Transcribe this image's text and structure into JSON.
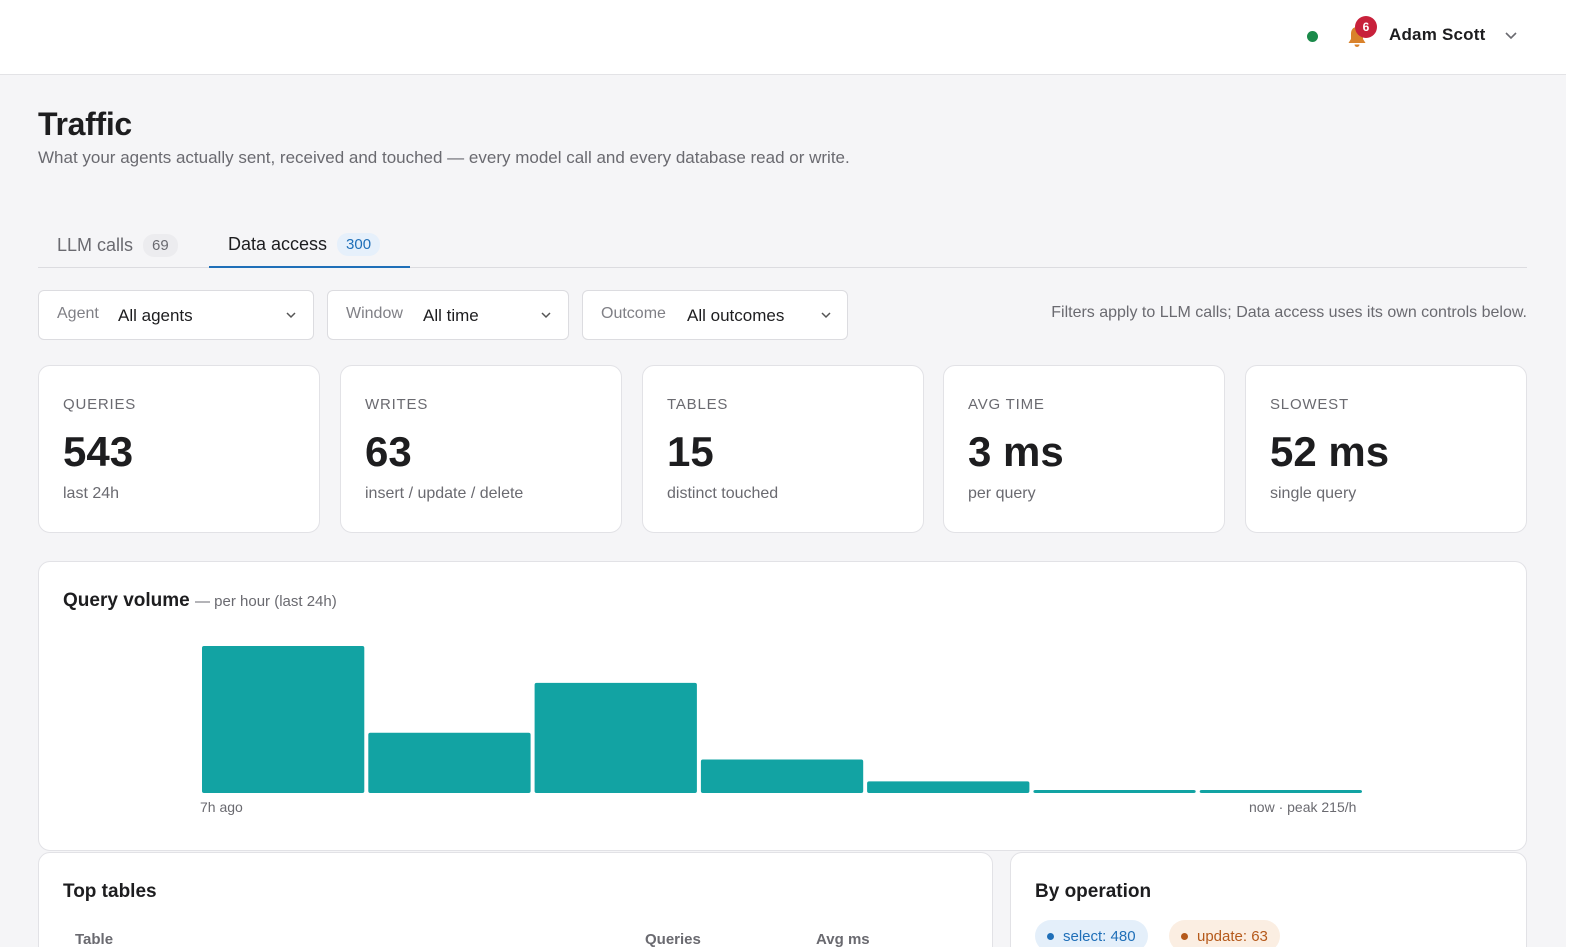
{
  "header": {
    "user_name": "Adam Scott",
    "notification_count": "6",
    "status_color": "#1a8a4a"
  },
  "page": {
    "title": "Traffic",
    "subtitle": "What your agents actually sent, received and touched — every model call and every database read or write."
  },
  "tabs": [
    {
      "label": "LLM calls",
      "count": "69",
      "active": false
    },
    {
      "label": "Data access",
      "count": "300",
      "active": true
    }
  ],
  "filters": {
    "agent": {
      "label": "Agent",
      "value": "All agents"
    },
    "window": {
      "label": "Window",
      "value": "All time"
    },
    "outcome": {
      "label": "Outcome",
      "value": "All outcomes"
    },
    "note": "Filters apply to LLM calls; Data access uses its own controls below."
  },
  "kpis": [
    {
      "label": "QUERIES",
      "value": "543",
      "sub": "last 24h"
    },
    {
      "label": "WRITES",
      "value": "63",
      "sub": "insert / update / delete"
    },
    {
      "label": "TABLES",
      "value": "15",
      "sub": "distinct touched"
    },
    {
      "label": "AVG TIME",
      "value": "3 ms",
      "sub": "per query"
    },
    {
      "label": "SLOWEST",
      "value": "52 ms",
      "sub": "single query"
    }
  ],
  "volume": {
    "title": "Query volume",
    "subtitle": "— per hour (last 24h)",
    "axis_left": "7h ago",
    "axis_right": "now · peak 215/h"
  },
  "chart_data": {
    "type": "bar",
    "title": "Query volume",
    "subtitle": "— per hour (last 24h)",
    "categories": [
      "",
      "",
      "",
      "",
      "",
      "",
      ""
    ],
    "values": [
      215,
      88,
      161,
      49,
      17,
      4,
      4
    ],
    "ylim": [
      0,
      215
    ],
    "bar_color": "#12a3a3",
    "grid": false
  },
  "top_tables": {
    "title": "Top tables",
    "columns": [
      "Table",
      "Queries",
      "Avg ms"
    ]
  },
  "by_operation": {
    "title": "By operation",
    "pills": [
      {
        "label": "select: 480"
      },
      {
        "label": "update: 63"
      }
    ]
  }
}
